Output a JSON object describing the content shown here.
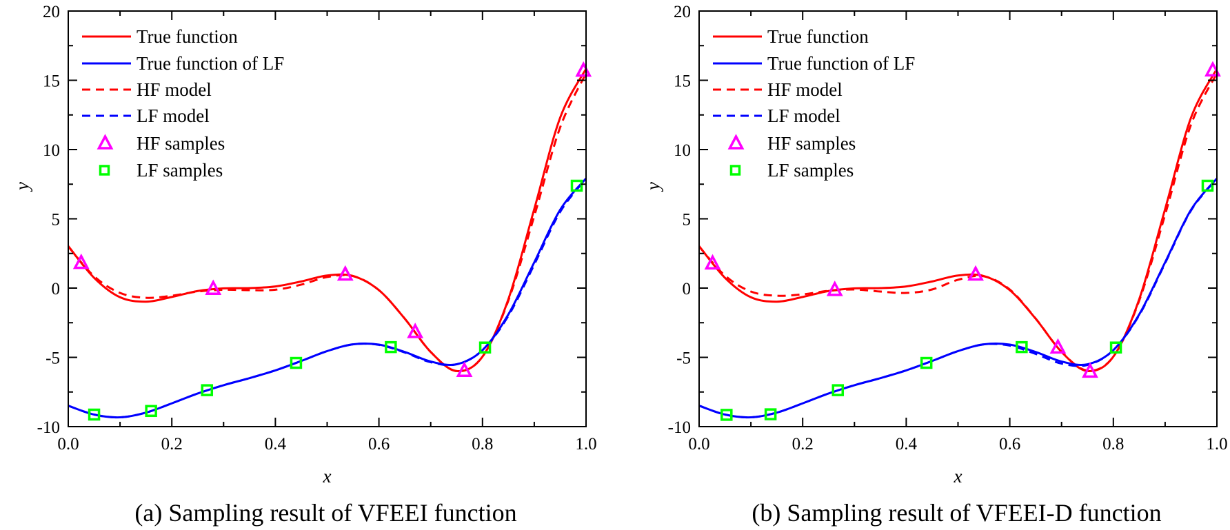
{
  "colors": {
    "true_hf": "#FF0000",
    "true_lf": "#0000FF",
    "hf_samples": "#FF00FF",
    "lf_samples": "#00FF00",
    "axis": "#000000"
  },
  "chart_data": [
    {
      "type": "line",
      "caption": "(a) Sampling result of VFEEI function",
      "xlabel": "x",
      "ylabel": "y",
      "xlim": [
        0,
        1
      ],
      "ylim": [
        -10,
        20
      ],
      "xticks": [
        "0.0",
        "0.2",
        "0.4",
        "0.6",
        "0.8",
        "1.0"
      ],
      "yticks": [
        "-10",
        "-5",
        "0",
        "5",
        "10",
        "15",
        "20"
      ],
      "legend_position": "top-left",
      "legend": [
        "True function",
        "True function of LF",
        "HF model",
        "LF model",
        "HF samples",
        "LF samples"
      ],
      "x": [
        0,
        0.05,
        0.1,
        0.15,
        0.2,
        0.25,
        0.3,
        0.35,
        0.4,
        0.45,
        0.5,
        0.55,
        0.6,
        0.65,
        0.7,
        0.75,
        0.8,
        0.85,
        0.9,
        0.95,
        1.0
      ],
      "series": [
        {
          "name": "True function",
          "style": "solid",
          "color": "#FF0000",
          "y": [
            3.03,
            0.74,
            -0.66,
            -0.98,
            -0.64,
            -0.21,
            -0.02,
            0.0,
            0.12,
            0.48,
            0.91,
            0.87,
            -0.15,
            -2.21,
            -4.61,
            -5.99,
            -4.95,
            -0.8,
            5.71,
            12.3,
            15.83
          ]
        },
        {
          "name": "True function of LF",
          "style": "solid",
          "color": "#0000FF",
          "y": [
            -8.49,
            -9.13,
            -9.33,
            -8.99,
            -8.32,
            -7.61,
            -7.01,
            -6.5,
            -5.94,
            -5.26,
            -4.55,
            -4.06,
            -4.08,
            -4.61,
            -5.3,
            -5.5,
            -4.48,
            -1.9,
            1.86,
            5.65,
            7.92
          ]
        },
        {
          "name": "HF model",
          "style": "dashed",
          "color": "#FF0000",
          "y": [
            3.0,
            0.85,
            -0.35,
            -0.7,
            -0.55,
            -0.25,
            -0.12,
            -0.15,
            -0.12,
            0.25,
            0.8,
            0.87,
            -0.15,
            -2.21,
            -4.61,
            -5.99,
            -4.95,
            -0.9,
            5.2,
            11.6,
            15.5
          ]
        },
        {
          "name": "LF model",
          "style": "dashed",
          "color": "#0000FF",
          "y": [
            -8.49,
            -9.13,
            -9.33,
            -8.99,
            -8.32,
            -7.61,
            -7.01,
            -6.5,
            -5.94,
            -5.26,
            -4.55,
            -4.06,
            -4.1,
            -4.65,
            -5.35,
            -5.5,
            -4.48,
            -2.0,
            1.7,
            5.5,
            7.9
          ]
        }
      ],
      "hf_samples": {
        "x": [
          0.025,
          0.28,
          0.535,
          0.67,
          0.765,
          0.995
        ],
        "y": [
          1.81,
          -0.06,
          0.97,
          -3.18,
          -5.98,
          15.69
        ]
      },
      "lf_samples": {
        "x": [
          0.05,
          0.16,
          0.268,
          0.44,
          0.623,
          0.805,
          0.982
        ],
        "y": [
          -9.13,
          -8.87,
          -7.37,
          -5.4,
          -4.26,
          -4.29,
          7.39
        ]
      }
    },
    {
      "type": "line",
      "caption": "(b) Sampling result of VFEEI-D function",
      "xlabel": "x",
      "ylabel": "y",
      "xlim": [
        0,
        1
      ],
      "ylim": [
        -10,
        20
      ],
      "xticks": [
        "0.0",
        "0.2",
        "0.4",
        "0.6",
        "0.8",
        "1.0"
      ],
      "yticks": [
        "-10",
        "-5",
        "0",
        "5",
        "10",
        "15",
        "20"
      ],
      "legend_position": "top-left",
      "legend": [
        "True function",
        "True function of LF",
        "HF model",
        "LF model",
        "HF samples",
        "LF samples"
      ],
      "x": [
        0,
        0.05,
        0.1,
        0.15,
        0.2,
        0.25,
        0.3,
        0.35,
        0.4,
        0.45,
        0.5,
        0.55,
        0.6,
        0.65,
        0.7,
        0.75,
        0.8,
        0.85,
        0.9,
        0.95,
        1.0
      ],
      "series": [
        {
          "name": "True function",
          "style": "solid",
          "color": "#FF0000",
          "y": [
            3.03,
            0.74,
            -0.66,
            -0.98,
            -0.64,
            -0.21,
            -0.02,
            0.0,
            0.12,
            0.48,
            0.91,
            0.87,
            -0.15,
            -2.21,
            -4.61,
            -5.99,
            -4.95,
            -0.8,
            5.71,
            12.3,
            15.83
          ]
        },
        {
          "name": "True function of LF",
          "style": "solid",
          "color": "#0000FF",
          "y": [
            -8.49,
            -9.13,
            -9.33,
            -8.99,
            -8.32,
            -7.61,
            -7.01,
            -6.5,
            -5.94,
            -5.26,
            -4.55,
            -4.06,
            -4.08,
            -4.61,
            -5.3,
            -5.5,
            -4.48,
            -1.9,
            1.86,
            5.65,
            7.92
          ]
        },
        {
          "name": "HF model",
          "style": "dashed",
          "color": "#FF0000",
          "y": [
            3.0,
            0.9,
            -0.25,
            -0.55,
            -0.45,
            -0.2,
            -0.1,
            -0.25,
            -0.35,
            -0.1,
            0.6,
            0.85,
            -0.1,
            -2.2,
            -4.6,
            -5.95,
            -4.95,
            -0.9,
            5.3,
            11.8,
            15.5
          ]
        },
        {
          "name": "LF model",
          "style": "dashed",
          "color": "#0000FF",
          "y": [
            -8.49,
            -9.13,
            -9.33,
            -8.99,
            -8.32,
            -7.61,
            -7.01,
            -6.5,
            -5.94,
            -5.26,
            -4.55,
            -4.06,
            -4.15,
            -4.75,
            -5.45,
            -5.55,
            -4.48,
            -1.95,
            1.8,
            5.6,
            7.9
          ]
        }
      ],
      "hf_samples": {
        "x": [
          0.026,
          0.262,
          0.534,
          0.693,
          0.755,
          0.992
        ],
        "y": [
          1.77,
          -0.14,
          0.97,
          -4.3,
          -6.04,
          15.71
        ]
      },
      "lf_samples": {
        "x": [
          0.053,
          0.138,
          0.268,
          0.439,
          0.623,
          0.805,
          0.982
        ],
        "y": [
          -9.15,
          -9.11,
          -7.37,
          -5.4,
          -4.26,
          -4.29,
          7.39
        ]
      }
    }
  ]
}
